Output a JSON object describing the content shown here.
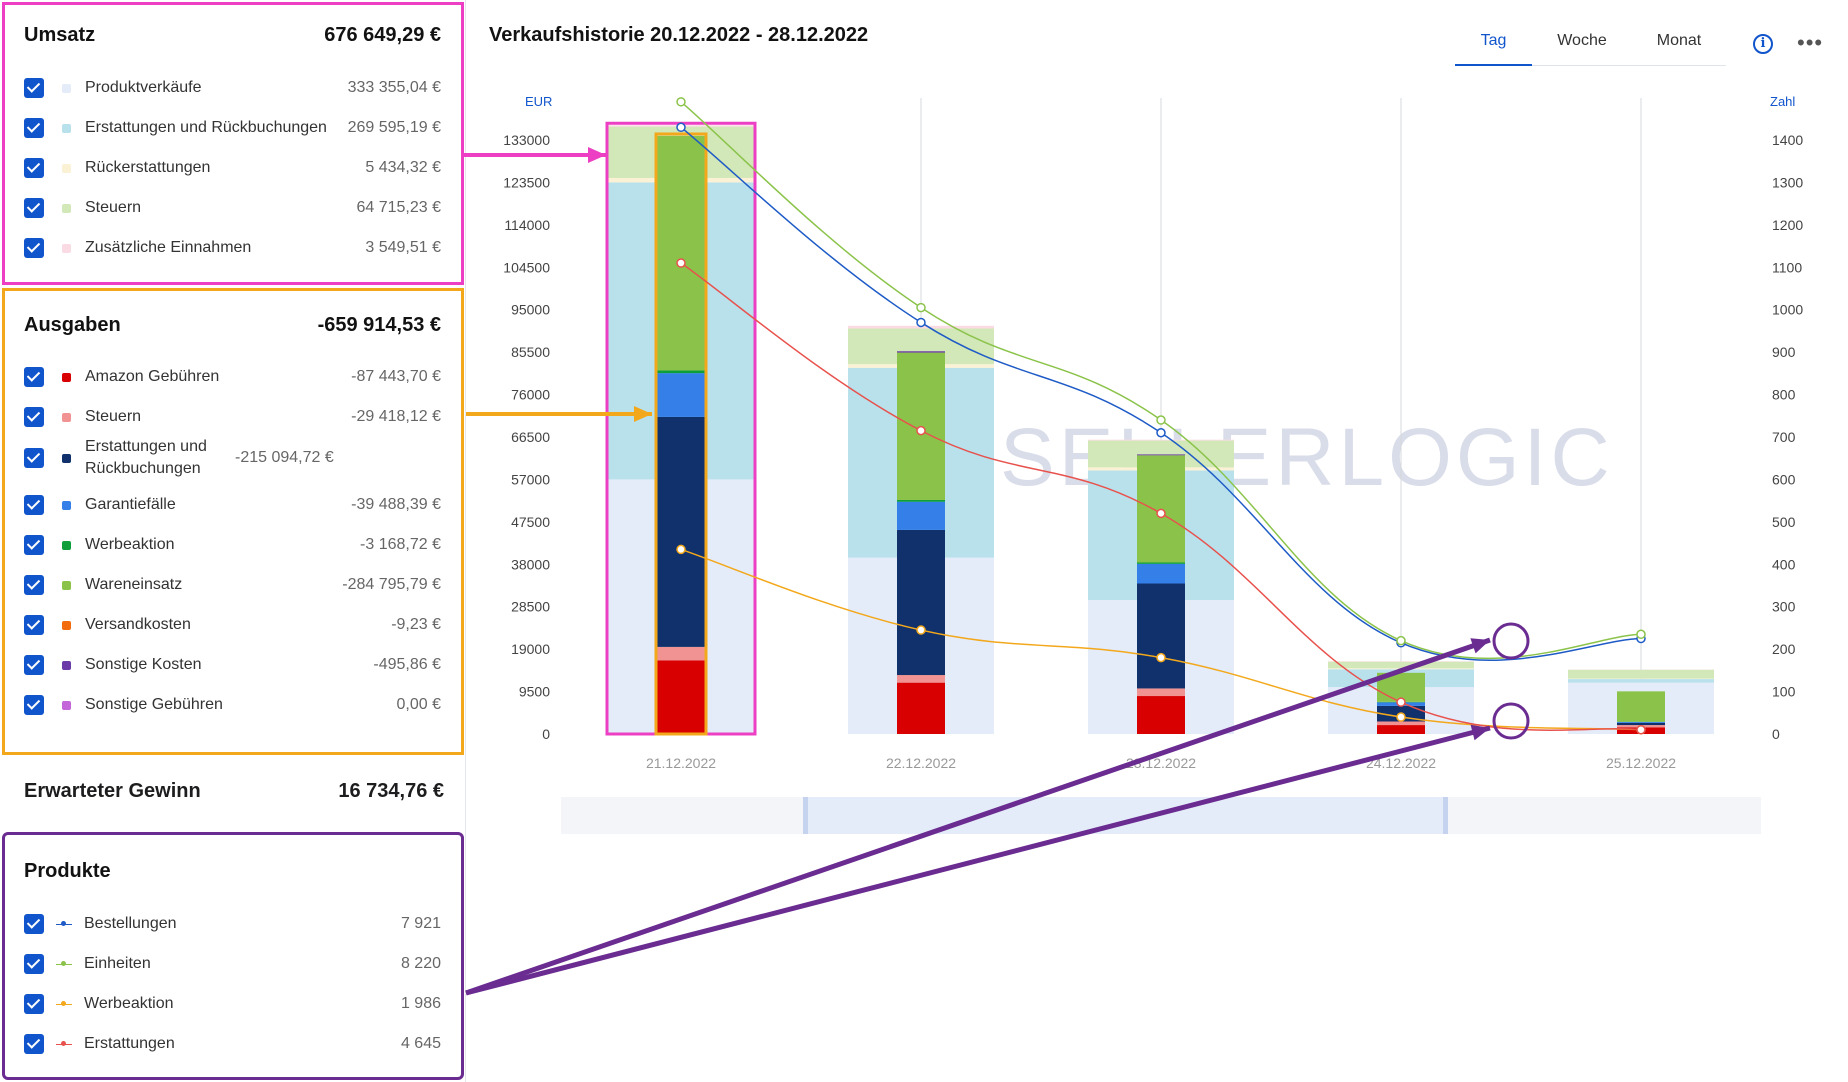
{
  "umsatz": {
    "title": "Umsatz",
    "total": "676 649,29 €",
    "items": [
      {
        "label": "Produktverkäufe",
        "value": "333 355,04 €",
        "color": "#e4ecf9"
      },
      {
        "label": "Erstattungen und Rückbuchungen",
        "value": "269 595,19 €",
        "color": "#b8e1ec"
      },
      {
        "label": "Rückerstattungen",
        "value": "5 434,32 €",
        "color": "#fbf2d5"
      },
      {
        "label": "Steuern",
        "value": "64 715,23 €",
        "color": "#d2e8b9"
      },
      {
        "label": "Zusätzliche Einnahmen",
        "value": "3 549,51 €",
        "color": "#fadbe3"
      }
    ]
  },
  "ausgaben": {
    "title": "Ausgaben",
    "total": "-659 914,53 €",
    "items": [
      {
        "label": "Amazon Gebühren",
        "value": "-87 443,70 €",
        "color": "#d80000"
      },
      {
        "label": "Steuern",
        "value": "-29 418,12 €",
        "color": "#f29393"
      },
      {
        "label": "Erstattungen und Rückbuchungen",
        "value": "-215 094,72 €",
        "color": "#10316b"
      },
      {
        "label": "Garantiefälle",
        "value": "-39 488,39 €",
        "color": "#3480e8"
      },
      {
        "label": "Werbeaktion",
        "value": "-3 168,72 €",
        "color": "#0e9f3a"
      },
      {
        "label": "Wareneinsatz",
        "value": "-284 795,79 €",
        "color": "#8bc34a"
      },
      {
        "label": "Versandkosten",
        "value": "-9,23 €",
        "color": "#f26c0d"
      },
      {
        "label": "Sonstige Kosten",
        "value": "-495,86 €",
        "color": "#6c3aa8"
      },
      {
        "label": "Sonstige Gebühren",
        "value": "0,00 €",
        "color": "#c266d9"
      }
    ]
  },
  "gewinn": {
    "label": "Erwarteter Gewinn",
    "value": "16 734,76 €"
  },
  "produkte": {
    "title": "Produkte",
    "items": [
      {
        "label": "Bestellungen",
        "value": "7 921",
        "color": "#1e5bc6"
      },
      {
        "label": "Einheiten",
        "value": "8 220",
        "color": "#8bc34a"
      },
      {
        "label": "Werbeaktion",
        "value": "1 986",
        "color": "#f3a81c"
      },
      {
        "label": "Erstattungen",
        "value": "4 645",
        "color": "#e8524d"
      }
    ]
  },
  "header": {
    "title": "Verkaufshistorie 20.12.2022 - 28.12.2022",
    "tabs": [
      "Tag",
      "Woche",
      "Monat"
    ],
    "active_tab": "Tag",
    "info_icon": "info-icon",
    "more_icon": "more-icon"
  },
  "watermark": "SELLERLOGIC",
  "annotations": {
    "highlight_colors": {
      "umsatz": "#ec3fc3",
      "ausgaben": "#f3a81c",
      "produkte": "#6a2c91"
    }
  },
  "chart_data": {
    "type": "bar",
    "stacked": true,
    "categories": [
      "21.12.2022",
      "22.12.2022",
      "23.12.2022",
      "24.12.2022",
      "25.12.2022"
    ],
    "y_left": {
      "unit": "EUR",
      "ticks": [
        0,
        9500,
        19000,
        28500,
        38000,
        47500,
        57000,
        66500,
        76000,
        85500,
        95000,
        104500,
        114000,
        123500,
        133000
      ]
    },
    "y_right": {
      "unit": "Zahl",
      "ticks": [
        0,
        100,
        200,
        300,
        400,
        500,
        600,
        700,
        800,
        900,
        1000,
        1100,
        1200,
        1300,
        1400
      ]
    },
    "ylim_left": [
      0,
      140000
    ],
    "ylim_right": [
      0,
      1500
    ],
    "revenue_series": [
      {
        "name": "Produktverkäufe",
        "values": [
          57000,
          39500,
          30000,
          10500,
          11500
        ]
      },
      {
        "name": "Erstattungen und Rückbuchungen",
        "values": [
          66500,
          42500,
          29000,
          4000,
          800
        ]
      },
      {
        "name": "Rückerstattungen",
        "values": [
          1000,
          800,
          700,
          200,
          100
        ]
      },
      {
        "name": "Steuern",
        "values": [
          11500,
          8000,
          6000,
          1500,
          2000
        ]
      },
      {
        "name": "Zusätzliche Einnahmen",
        "values": [
          300,
          600,
          200,
          100,
          50
        ]
      }
    ],
    "expense_series": [
      {
        "name": "Amazon Gebühren",
        "values": [
          16500,
          11500,
          8500,
          2000,
          1500
        ]
      },
      {
        "name": "Steuern",
        "values": [
          3000,
          1700,
          1700,
          800,
          500
        ]
      },
      {
        "name": "Erstattungen und Rückbuchungen",
        "values": [
          51500,
          32500,
          23500,
          3500,
          500
        ]
      },
      {
        "name": "Garantiefälle",
        "values": [
          9800,
          6300,
          4400,
          800,
          200
        ]
      },
      {
        "name": "Werbeaktion",
        "values": [
          600,
          400,
          300,
          100,
          50
        ]
      },
      {
        "name": "Wareneinsatz",
        "values": [
          52500,
          33000,
          24000,
          6500,
          6800
        ]
      },
      {
        "name": "Versandkosten",
        "values": [
          0,
          0,
          0,
          0,
          0
        ]
      },
      {
        "name": "Sonstige Kosten",
        "values": [
          0,
          300,
          200,
          0,
          0
        ]
      },
      {
        "name": "Sonstige Gebühren",
        "values": [
          0,
          0,
          0,
          0,
          0
        ]
      }
    ],
    "line_series": [
      {
        "name": "Bestellungen",
        "axis": "right",
        "values": [
          1430,
          970,
          710,
          215,
          225
        ]
      },
      {
        "name": "Einheiten",
        "axis": "right",
        "values": [
          1490,
          1005,
          740,
          220,
          235
        ]
      },
      {
        "name": "Werbeaktion",
        "axis": "right",
        "values": [
          435,
          245,
          180,
          40,
          10
        ]
      },
      {
        "name": "Erstattungen",
        "axis": "right",
        "values": [
          1110,
          715,
          520,
          75,
          10
        ]
      }
    ]
  }
}
